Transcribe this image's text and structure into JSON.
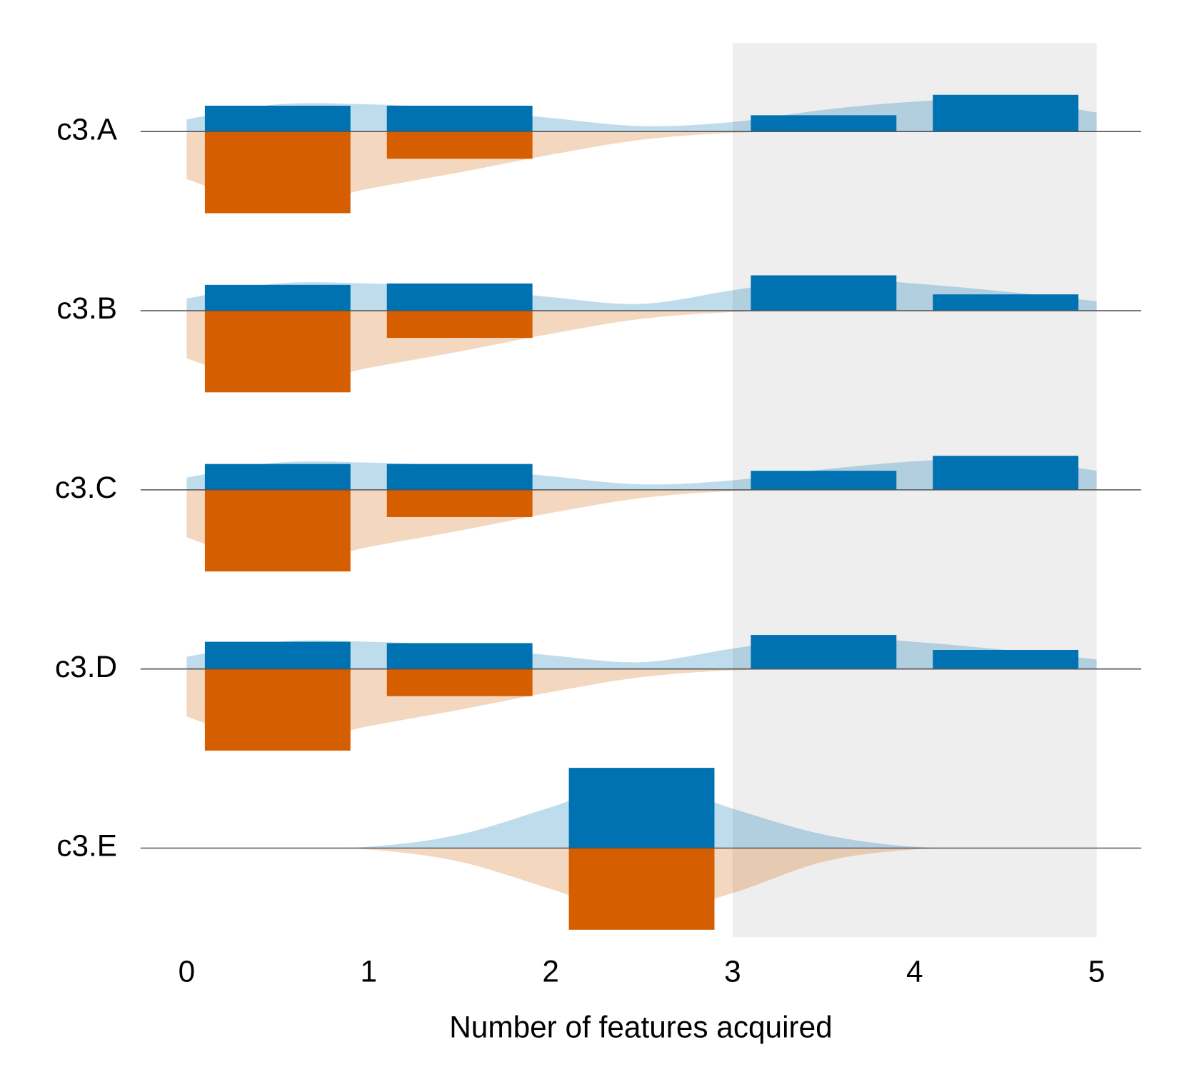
{
  "chart_data": {
    "type": "mirrored_histogram",
    "xlabel": "Number of features acquired",
    "xlim": [
      0,
      5
    ],
    "xticks": [
      0,
      1,
      2,
      3,
      4,
      5
    ],
    "bins": [
      0,
      1,
      2,
      3,
      4,
      5
    ],
    "highlight_range": [
      3,
      5
    ],
    "top_color": "#0072b2",
    "bottom_color": "#d55e00",
    "density_x": [
      0,
      0.5,
      1,
      1.5,
      2,
      2.5,
      3,
      3.5,
      4,
      4.5,
      5
    ],
    "rows": [
      {
        "label": "c3.A",
        "top": [
          0.19,
          0.19,
          0,
          0.12,
          0.27
        ],
        "bottom": [
          0.6,
          0.2,
          0,
          0,
          0
        ],
        "top_density": [
          0.09,
          0.2,
          0.2,
          0.17,
          0.1,
          0.04,
          0.07,
          0.16,
          0.22,
          0.24,
          0.14
        ],
        "bottom_density": [
          0.35,
          0.55,
          0.42,
          0.3,
          0.17,
          0.06,
          0.01,
          0,
          0,
          0,
          0
        ]
      },
      {
        "label": "c3.B",
        "top": [
          0.19,
          0.2,
          0,
          0.26,
          0.12
        ],
        "bottom": [
          0.6,
          0.2,
          0,
          0,
          0
        ],
        "top_density": [
          0.09,
          0.2,
          0.2,
          0.17,
          0.1,
          0.05,
          0.15,
          0.24,
          0.2,
          0.14,
          0.07
        ],
        "bottom_density": [
          0.35,
          0.55,
          0.42,
          0.3,
          0.17,
          0.06,
          0.01,
          0,
          0,
          0,
          0
        ]
      },
      {
        "label": "c3.C",
        "top": [
          0.19,
          0.19,
          0,
          0.14,
          0.25
        ],
        "bottom": [
          0.6,
          0.2,
          0,
          0,
          0
        ],
        "top_density": [
          0.09,
          0.2,
          0.2,
          0.17,
          0.1,
          0.04,
          0.07,
          0.15,
          0.21,
          0.23,
          0.14
        ],
        "bottom_density": [
          0.35,
          0.55,
          0.42,
          0.3,
          0.17,
          0.06,
          0.01,
          0,
          0,
          0,
          0
        ]
      },
      {
        "label": "c3.D",
        "top": [
          0.2,
          0.19,
          0,
          0.25,
          0.14
        ],
        "bottom": [
          0.6,
          0.2,
          0,
          0,
          0
        ],
        "top_density": [
          0.09,
          0.2,
          0.2,
          0.17,
          0.1,
          0.05,
          0.15,
          0.24,
          0.2,
          0.14,
          0.07
        ],
        "bottom_density": [
          0.35,
          0.55,
          0.42,
          0.3,
          0.17,
          0.06,
          0.01,
          0,
          0,
          0,
          0
        ]
      },
      {
        "label": "c3.E",
        "top": [
          0,
          0,
          0.59,
          0,
          0
        ],
        "bottom": [
          0,
          0,
          0.6,
          0,
          0
        ],
        "top_density": [
          0,
          0,
          0.01,
          0.1,
          0.3,
          0.5,
          0.29,
          0.1,
          0.01,
          0,
          0
        ],
        "bottom_density": [
          0,
          0,
          0.01,
          0.1,
          0.3,
          0.5,
          0.33,
          0.1,
          0.01,
          0,
          0
        ]
      }
    ]
  }
}
